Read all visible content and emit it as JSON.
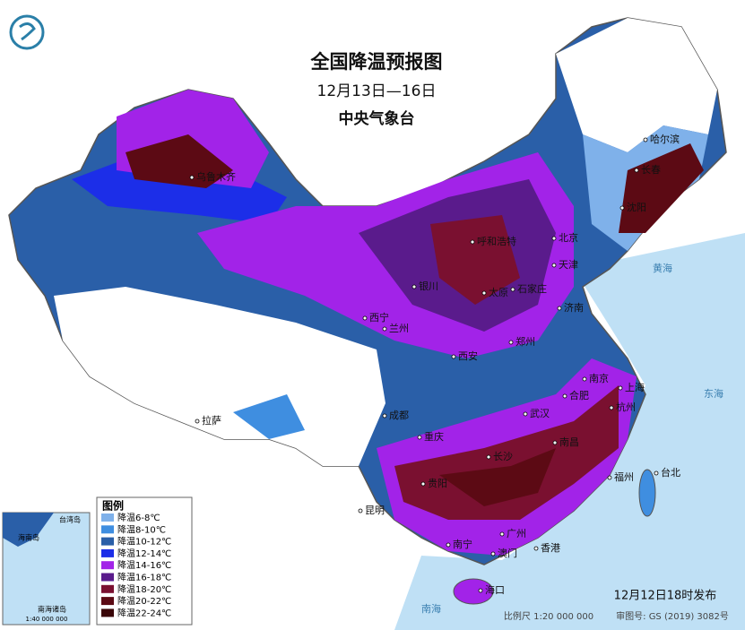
{
  "header": {
    "title": "全国降温预报图",
    "dates": "12月13日—16日",
    "agency": "中央气象台"
  },
  "legend": {
    "title": "图例",
    "items": [
      {
        "label": "降温6-8℃",
        "color": "#7fb1ea"
      },
      {
        "label": "降温8-10℃",
        "color": "#3f8ee0"
      },
      {
        "label": "降温10-12℃",
        "color": "#2a5fa8"
      },
      {
        "label": "降温12-14℃",
        "color": "#1c2ee8"
      },
      {
        "label": "降温14-16℃",
        "color": "#a223e8"
      },
      {
        "label": "降温16-18℃",
        "color": "#5a1b8c"
      },
      {
        "label": "降温18-20℃",
        "color": "#7a1030"
      },
      {
        "label": "降温20-22℃",
        "color": "#5c0a14"
      },
      {
        "label": "降温22-24℃",
        "color": "#3a0608"
      }
    ]
  },
  "cities": [
    "哈尔滨",
    "长春",
    "沈阳",
    "乌鲁木齐",
    "呼和浩特",
    "北京",
    "天津",
    "石家庄",
    "太原",
    "济南",
    "银川",
    "西宁",
    "兰州",
    "郑州",
    "西安",
    "南京",
    "合肥",
    "上海",
    "杭州",
    "武汉",
    "成都",
    "重庆",
    "长沙",
    "南昌",
    "贵阳",
    "福州",
    "台北",
    "昆明",
    "南宁",
    "广州",
    "香港",
    "澳门",
    "海口",
    "拉萨"
  ],
  "seas": [
    "黄海",
    "东海",
    "南海"
  ],
  "inset": {
    "labels": [
      "台湾岛",
      "海南岛",
      "南海诸岛"
    ],
    "scale": "1:40 000 000"
  },
  "footer": {
    "issued": "12月12日18时发布",
    "scale": "比例尺 1:20 000 000",
    "approval": "审图号: GS (2019) 3082号"
  }
}
